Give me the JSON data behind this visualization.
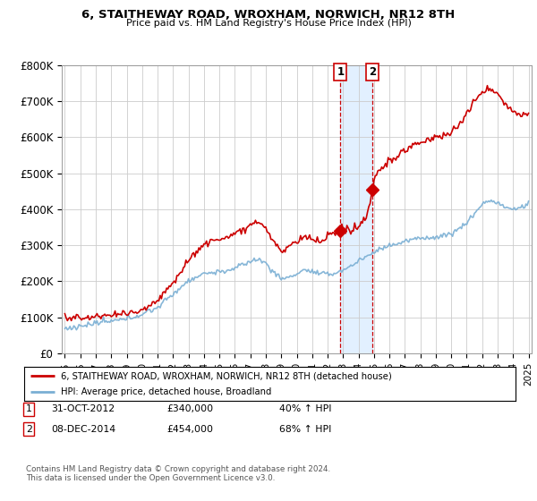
{
  "title": "6, STAITHEWAY ROAD, WROXHAM, NORWICH, NR12 8TH",
  "subtitle": "Price paid vs. HM Land Registry's House Price Index (HPI)",
  "ylim": [
    0,
    800000
  ],
  "yticks": [
    0,
    100000,
    200000,
    300000,
    400000,
    500000,
    600000,
    700000,
    800000
  ],
  "ytick_labels": [
    "£0",
    "£100K",
    "£200K",
    "£300K",
    "£400K",
    "£500K",
    "£600K",
    "£700K",
    "£800K"
  ],
  "sale1_date": 2012.83,
  "sale1_price": 340000,
  "sale1_label": "1",
  "sale2_date": 2014.92,
  "sale2_price": 454000,
  "sale2_label": "2",
  "legend_line1": "6, STAITHEWAY ROAD, WROXHAM, NORWICH, NR12 8TH (detached house)",
  "legend_line2": "HPI: Average price, detached house, Broadland",
  "table_row1": [
    "1",
    "31-OCT-2012",
    "£340,000",
    "40% ↑ HPI"
  ],
  "table_row2": [
    "2",
    "08-DEC-2014",
    "£454,000",
    "68% ↑ HPI"
  ],
  "footer": "Contains HM Land Registry data © Crown copyright and database right 2024.\nThis data is licensed under the Open Government Licence v3.0.",
  "red_color": "#cc0000",
  "blue_color": "#7aafd4",
  "shading_color": "#ddeeff",
  "grid_color": "#cccccc",
  "bg_color": "#ffffff",
  "hpi_seed_values": [
    [
      1995.0,
      68000
    ],
    [
      1996.0,
      73000
    ],
    [
      1997.0,
      80000
    ],
    [
      1998.0,
      87000
    ],
    [
      1999.0,
      96000
    ],
    [
      2000.0,
      108000
    ],
    [
      2001.0,
      128000
    ],
    [
      2002.0,
      165000
    ],
    [
      2003.0,
      200000
    ],
    [
      2004.0,
      220000
    ],
    [
      2005.0,
      225000
    ],
    [
      2006.0,
      235000
    ],
    [
      2007.0,
      255000
    ],
    [
      2007.5,
      260000
    ],
    [
      2008.0,
      250000
    ],
    [
      2008.5,
      225000
    ],
    [
      2009.0,
      205000
    ],
    [
      2009.5,
      208000
    ],
    [
      2010.0,
      220000
    ],
    [
      2010.5,
      230000
    ],
    [
      2011.0,
      225000
    ],
    [
      2011.5,
      218000
    ],
    [
      2012.0,
      218000
    ],
    [
      2012.5,
      222000
    ],
    [
      2013.0,
      230000
    ],
    [
      2013.5,
      240000
    ],
    [
      2014.0,
      255000
    ],
    [
      2014.5,
      268000
    ],
    [
      2015.0,
      280000
    ],
    [
      2015.5,
      292000
    ],
    [
      2016.0,
      300000
    ],
    [
      2016.5,
      305000
    ],
    [
      2017.0,
      310000
    ],
    [
      2017.5,
      318000
    ],
    [
      2018.0,
      320000
    ],
    [
      2018.5,
      325000
    ],
    [
      2019.0,
      325000
    ],
    [
      2019.5,
      330000
    ],
    [
      2020.0,
      335000
    ],
    [
      2020.5,
      348000
    ],
    [
      2021.0,
      365000
    ],
    [
      2021.5,
      390000
    ],
    [
      2022.0,
      415000
    ],
    [
      2022.5,
      425000
    ],
    [
      2023.0,
      420000
    ],
    [
      2023.5,
      405000
    ],
    [
      2024.0,
      400000
    ],
    [
      2024.5,
      405000
    ],
    [
      2025.0,
      415000
    ]
  ],
  "red_seed_values": [
    [
      1995.0,
      100000
    ],
    [
      1996.0,
      97000
    ],
    [
      1997.0,
      100000
    ],
    [
      1998.0,
      104000
    ],
    [
      1999.0,
      108000
    ],
    [
      2000.0,
      118000
    ],
    [
      2001.0,
      145000
    ],
    [
      2002.0,
      195000
    ],
    [
      2003.0,
      255000
    ],
    [
      2004.0,
      300000
    ],
    [
      2005.0,
      310000
    ],
    [
      2006.0,
      325000
    ],
    [
      2007.0,
      355000
    ],
    [
      2007.5,
      360000
    ],
    [
      2008.0,
      345000
    ],
    [
      2008.5,
      305000
    ],
    [
      2009.0,
      275000
    ],
    [
      2009.25,
      278000
    ],
    [
      2009.5,
      290000
    ],
    [
      2010.0,
      305000
    ],
    [
      2010.5,
      320000
    ],
    [
      2011.0,
      310000
    ],
    [
      2011.5,
      300000
    ],
    [
      2012.0,
      315000
    ],
    [
      2012.5,
      325000
    ],
    [
      2012.83,
      340000
    ],
    [
      2013.0,
      335000
    ],
    [
      2013.5,
      340000
    ],
    [
      2014.0,
      345000
    ],
    [
      2014.5,
      370000
    ],
    [
      2014.92,
      454000
    ],
    [
      2015.0,
      480000
    ],
    [
      2015.5,
      510000
    ],
    [
      2016.0,
      530000
    ],
    [
      2016.5,
      545000
    ],
    [
      2017.0,
      560000
    ],
    [
      2017.5,
      575000
    ],
    [
      2018.0,
      580000
    ],
    [
      2018.5,
      590000
    ],
    [
      2019.0,
      595000
    ],
    [
      2019.5,
      600000
    ],
    [
      2020.0,
      610000
    ],
    [
      2020.5,
      630000
    ],
    [
      2021.0,
      660000
    ],
    [
      2021.5,
      695000
    ],
    [
      2022.0,
      720000
    ],
    [
      2022.5,
      735000
    ],
    [
      2023.0,
      720000
    ],
    [
      2023.5,
      690000
    ],
    [
      2024.0,
      670000
    ],
    [
      2024.5,
      660000
    ],
    [
      2025.0,
      665000
    ]
  ]
}
